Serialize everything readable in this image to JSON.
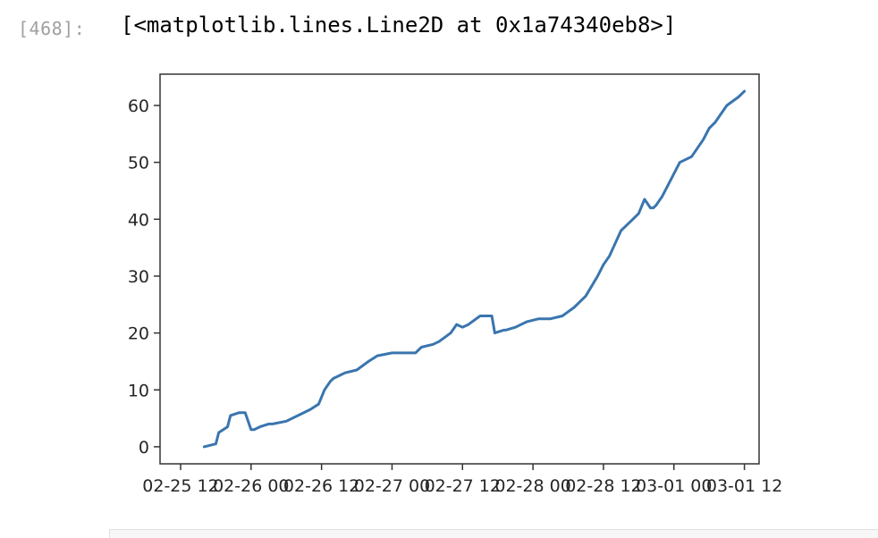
{
  "cell": {
    "prompt": "[468]:",
    "output_text": "[<matplotlib.lines.Line2D at 0x1a74340eb8>]"
  },
  "chart_data": {
    "type": "line",
    "title": "",
    "xlabel": "",
    "ylabel": "",
    "x_ticks": [
      "02-25 12",
      "02-26 00",
      "02-26 12",
      "02-27 00",
      "02-27 12",
      "02-28 00",
      "02-28 12",
      "03-01 00",
      "03-01 12"
    ],
    "y_ticks": [
      0,
      10,
      20,
      30,
      40,
      50,
      60
    ],
    "ylim": [
      -3,
      65.5
    ],
    "xlim": [
      "2019-02-25 08:30",
      "2019-03-01 14:30"
    ],
    "grid": false,
    "line_color": "#3a75ae",
    "series": [
      {
        "x": [
          "2019-02-25 16:00",
          "2019-02-25 18:00",
          "2019-02-25 18:30",
          "2019-02-25 20:00",
          "2019-02-25 20:30",
          "2019-02-25 22:00",
          "2019-02-25 23:00",
          "2019-02-26 00:00",
          "2019-02-26 00:30",
          "2019-02-26 01:30",
          "2019-02-26 03:00",
          "2019-02-26 03:40",
          "2019-02-26 06:00",
          "2019-02-26 08:00",
          "2019-02-26 10:00",
          "2019-02-26 11:30",
          "2019-02-26 12:30",
          "2019-02-26 13:30",
          "2019-02-26 14:00",
          "2019-02-26 16:00",
          "2019-02-26 18:00",
          "2019-02-26 20:00",
          "2019-02-26 21:30",
          "2019-02-27 00:00",
          "2019-02-27 02:00",
          "2019-02-27 04:00",
          "2019-02-27 05:00",
          "2019-02-27 07:00",
          "2019-02-27 08:00",
          "2019-02-27 10:00",
          "2019-02-27 11:00",
          "2019-02-27 12:00",
          "2019-02-27 13:00",
          "2019-02-27 15:00",
          "2019-02-27 17:00",
          "2019-02-27 17:30",
          "2019-02-27 19:00",
          "2019-02-27 19:20",
          "2019-02-27 21:00",
          "2019-02-27 23:00",
          "2019-02-28 01:00",
          "2019-02-28 03:00",
          "2019-02-28 05:00",
          "2019-02-28 07:00",
          "2019-02-28 09:00",
          "2019-02-28 11:00",
          "2019-02-28 12:00",
          "2019-02-28 13:00",
          "2019-02-28 15:00",
          "2019-02-28 16:00",
          "2019-02-28 17:00",
          "2019-02-28 18:00",
          "2019-02-28 19:00",
          "2019-02-28 20:00",
          "2019-02-28 20:30",
          "2019-02-28 21:00",
          "2019-02-28 22:00",
          "2019-02-28 23:00",
          "2019-03-01 01:00",
          "2019-03-01 03:00",
          "2019-03-01 05:00",
          "2019-03-01 06:00",
          "2019-03-01 07:00",
          "2019-03-01 09:00",
          "2019-03-01 11:00",
          "2019-03-01 12:00"
        ],
        "y": [
          0,
          0.5,
          2.5,
          3.5,
          5.5,
          6,
          6,
          3,
          3,
          3.5,
          4,
          4,
          4.5,
          5.5,
          6.5,
          7.5,
          10,
          11.5,
          12,
          13,
          13.5,
          15,
          16,
          16.5,
          16.5,
          16.5,
          17.5,
          18,
          18.5,
          20,
          21.5,
          21,
          21.5,
          23,
          23,
          20,
          20.5,
          20.5,
          21,
          22,
          22.5,
          22.5,
          23,
          24.5,
          26.5,
          30,
          32,
          33.5,
          38,
          39,
          40,
          41,
          43.5,
          42,
          42,
          42.5,
          44,
          46,
          50,
          51,
          54,
          56,
          57,
          60,
          61.5,
          62.5
        ]
      }
    ]
  }
}
